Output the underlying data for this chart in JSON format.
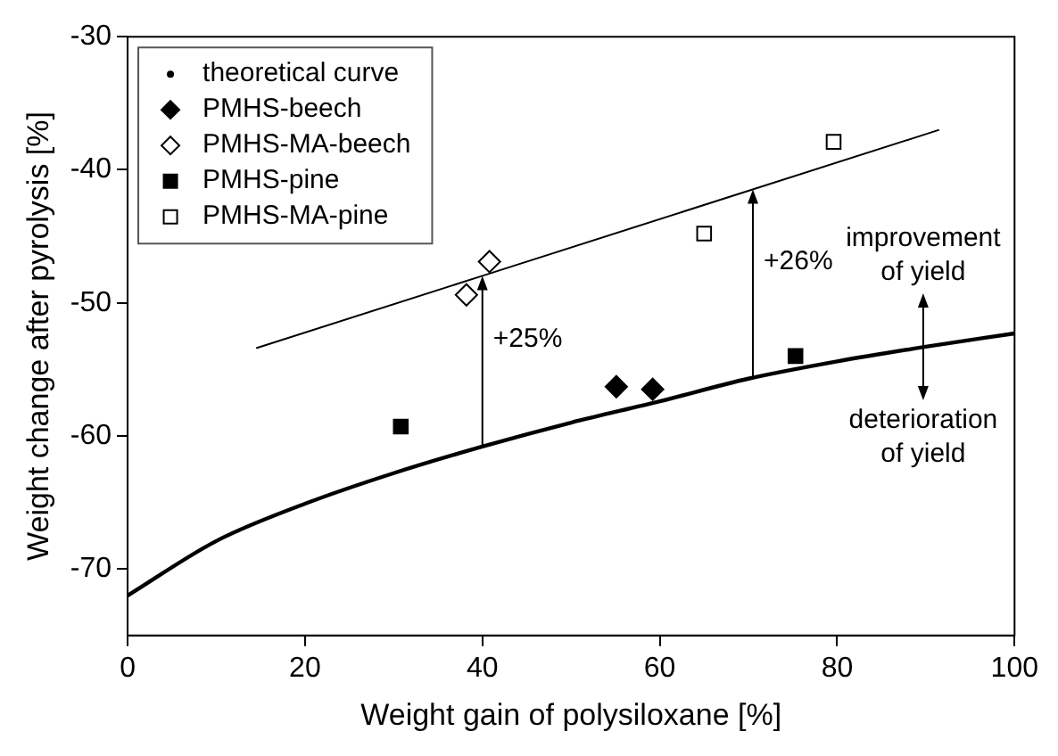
{
  "chart_data": {
    "type": "scatter",
    "xlabel": "Weight gain of polysiloxane [%]",
    "ylabel": "Weight change after pyrolysis [%]",
    "xlim": [
      0,
      100
    ],
    "xticks": [
      0,
      20,
      40,
      60,
      80,
      100
    ],
    "ylim": [
      -75,
      -30
    ],
    "yticks": [
      -70,
      -60,
      -50,
      -40,
      -30
    ],
    "grid": false,
    "legend": "top left",
    "series": [
      {
        "name": "theoretical curve",
        "type": "line",
        "color": "#000000",
        "marker": "none",
        "x": [
          0,
          10,
          20,
          30,
          40,
          50,
          60,
          70,
          80,
          90,
          100
        ],
        "values": [
          -72,
          -67.9,
          -65.1,
          -62.8,
          -60.8,
          -59,
          -57.4,
          -55.7,
          -54.4,
          -53.3,
          -52.3
        ]
      },
      {
        "name": "PMHS-beech",
        "color": "#000000",
        "marker": "diamond",
        "x": [
          55.1,
          59.2
        ],
        "values": [
          -56.3,
          -56.5
        ]
      },
      {
        "name": "PMHS-MA-beech",
        "color": "#ffffff",
        "marker": "diamond",
        "x": [
          38.2,
          40.8
        ],
        "values": [
          -49.4,
          -46.9
        ]
      },
      {
        "name": "PMHS-pine",
        "color": "#000000",
        "marker": "square",
        "x": [
          30.8,
          75.3
        ],
        "values": [
          -59.3,
          -54
        ]
      },
      {
        "name": "PMHS-MA-pine",
        "color": "#ffffff",
        "marker": "square",
        "x": [
          65,
          79.6
        ],
        "values": [
          -44.8,
          -37.9
        ]
      },
      {
        "type": "line",
        "color": "#000000",
        "marker": "none",
        "x": [
          14.5,
          91.5
        ],
        "values": [
          -53.4,
          -37
        ]
      }
    ],
    "annotations": [
      {
        "text": "+25%",
        "x": 40,
        "y": -47.97
      },
      {
        "text": "+26%",
        "x": 70.5,
        "y": -41.47
      },
      {
        "text": "improvement\nof yield",
        "x": 89.7,
        "y": -53.3
      },
      {
        "text": "deterioration\nof yield",
        "x": 89.7,
        "y": -53.3
      }
    ]
  }
}
